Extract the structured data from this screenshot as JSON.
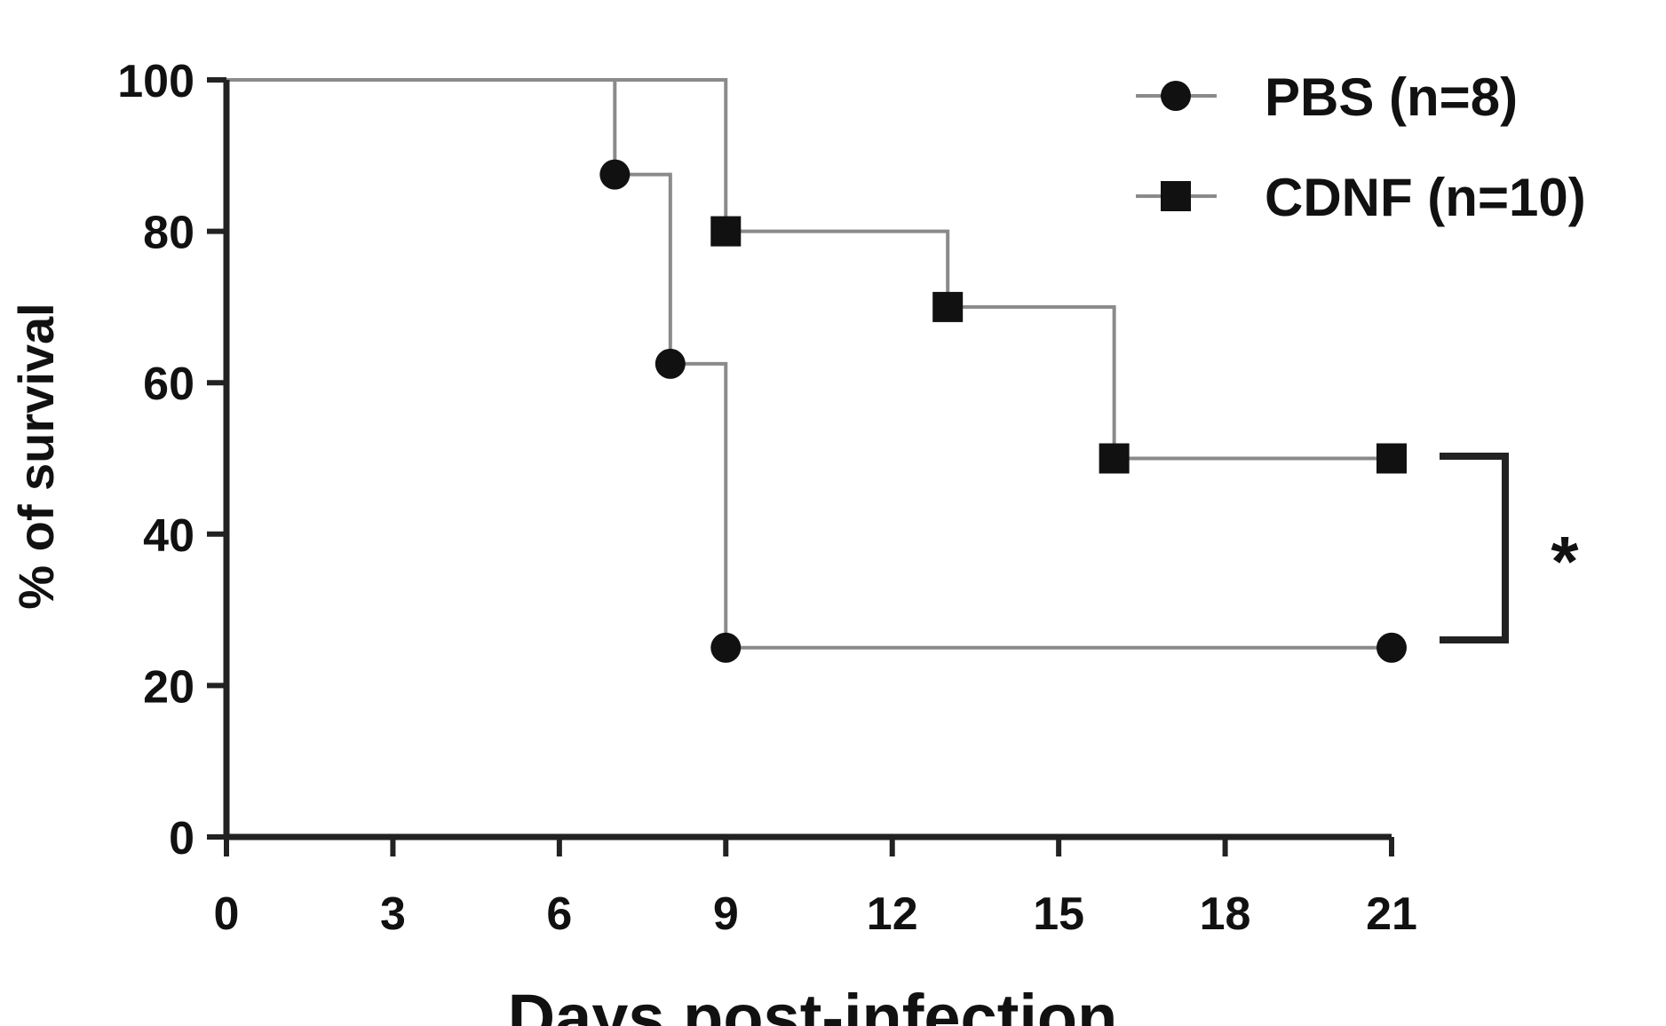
{
  "chart_data": {
    "type": "line",
    "subtype": "kaplan-meier step",
    "xlabel": "Days post-infection",
    "ylabel": "% of survival",
    "xlim": [
      0,
      21
    ],
    "ylim": [
      0,
      100
    ],
    "xticks": [
      "0",
      "3",
      "6",
      "9",
      "12",
      "15",
      "18",
      "21"
    ],
    "yticks": [
      "0",
      "20",
      "40",
      "60",
      "80",
      "100"
    ],
    "grid": false,
    "legend_position": "top-right",
    "series": [
      {
        "name": "PBS (n=8)",
        "marker": "circle",
        "x": [
          0,
          7,
          8,
          9,
          21
        ],
        "y": [
          100,
          87.5,
          62.5,
          25,
          25
        ]
      },
      {
        "name": "CDNF (n=10)",
        "marker": "square",
        "x": [
          0,
          9,
          13,
          16,
          21
        ],
        "y": [
          100,
          80,
          70,
          50,
          50
        ]
      }
    ],
    "annotation": "*",
    "colors": {
      "line": "#8a8a8a",
      "marker": "#111111",
      "axis": "#222222"
    }
  }
}
